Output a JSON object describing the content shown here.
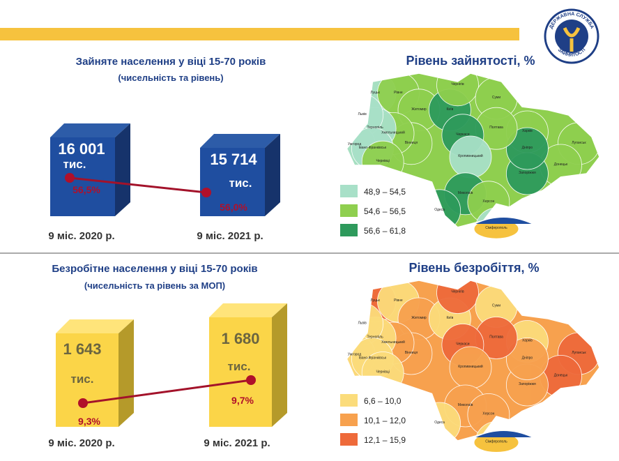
{
  "logo": {
    "top_text": "ДЕРЖАВНА СЛУЖБА",
    "bottom_text": "ЗАЙНЯТОСТІ"
  },
  "employed": {
    "title": "Зайняте населення у віці 15-70 років",
    "subtitle": "(чисельність та рівень)",
    "items": [
      {
        "count": "16 001",
        "unit": "тис.",
        "rate": "56,5%",
        "period": "9 міс. 2020 р."
      },
      {
        "count": "15 714",
        "unit": "тис.",
        "rate": "56,0%",
        "period": "9 міс. 2021 р."
      }
    ]
  },
  "unemployed": {
    "title": "Безробітне населення у віці 15-70 років",
    "subtitle": "(чисельність та рівень за МОП)",
    "items": [
      {
        "count": "1 643",
        "unit": "тис.",
        "rate": "9,3%",
        "period": "9 міс. 2020 р."
      },
      {
        "count": "1 680",
        "unit": "тис.",
        "rate": "9,7%",
        "period": "9 міс. 2021 р."
      }
    ]
  },
  "employment_map": {
    "title": "Рівень зайнятості, %",
    "legend": [
      "48,9 – 54,5",
      "54,6 – 56,5",
      "56,6 – 61,8"
    ]
  },
  "unemployment_map": {
    "title": "Рівень безробіття, %",
    "legend": [
      "6,6 – 10,0",
      "10,1 – 12,0",
      "12,1 – 15,9"
    ]
  },
  "regions": [
    "Луцьк",
    "Рівне",
    "Житомир",
    "Київ",
    "Чернігів",
    "Суми",
    "Харків",
    "Луганськ",
    "Донецьк",
    "Запоріжжя",
    "Дніпро",
    "Полтава",
    "Черкаси",
    "Кропивницький",
    "Миколаїв",
    "Херсон",
    "Одеса",
    "Вінниця",
    "Хмельницький",
    "Тернопіль",
    "Львів",
    "Ужгород",
    "Івано-Франківськ",
    "Чернівці",
    "Сімферополь"
  ]
}
